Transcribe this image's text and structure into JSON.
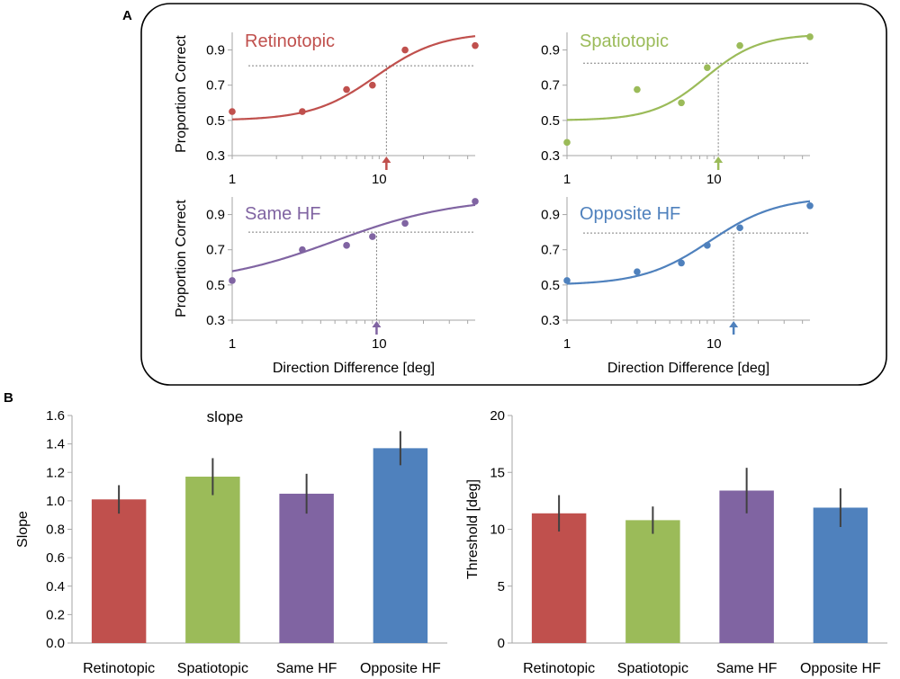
{
  "panel_labels": {
    "a": "A",
    "b": "B"
  },
  "colors": {
    "retinotopic": "#c0504d",
    "spatiotopic": "#9bbb59",
    "same_hf": "#8064a2",
    "opposite_hf": "#4f81bd",
    "axis": "#a6a6a6",
    "reference_line": "#808080",
    "text": "#000000"
  },
  "chart_data": [
    {
      "type": "scatter",
      "title": "Retinotopic",
      "xlabel": "",
      "ylabel": "Proportion  Correct",
      "x_scale": "log",
      "xlim": [
        1,
        45
      ],
      "ylim": [
        0.3,
        1.0
      ],
      "x_ticks": [
        1,
        10
      ],
      "x_tick_labels": [
        "1",
        "10"
      ],
      "y_ticks": [
        0.3,
        0.5,
        0.7,
        0.9
      ],
      "y_tick_labels": [
        "0.3",
        "0.5",
        "0.7",
        "0.9"
      ],
      "points": [
        {
          "x": 1,
          "y": 0.55
        },
        {
          "x": 3,
          "y": 0.55
        },
        {
          "x": 6,
          "y": 0.675
        },
        {
          "x": 9,
          "y": 0.7
        },
        {
          "x": 15,
          "y": 0.9
        },
        {
          "x": 45,
          "y": 0.925
        }
      ],
      "fit": {
        "low": 0.5,
        "high": 1.0,
        "x50": 9.5,
        "steepness": 2.0
      },
      "criterion": 0.81,
      "threshold": 11.2,
      "color_key": "retinotopic"
    },
    {
      "type": "scatter",
      "title": "Spatiotopic",
      "xlabel": "",
      "ylabel": "",
      "x_scale": "log",
      "xlim": [
        1,
        45
      ],
      "ylim": [
        0.3,
        1.0
      ],
      "x_ticks": [
        1,
        10
      ],
      "x_tick_labels": [
        "1",
        "10"
      ],
      "y_ticks": [
        0.3,
        0.5,
        0.7,
        0.9
      ],
      "y_tick_labels": [
        "0.3",
        "0.5",
        "0.7",
        "0.9"
      ],
      "points": [
        {
          "x": 1,
          "y": 0.375
        },
        {
          "x": 3,
          "y": 0.675
        },
        {
          "x": 6,
          "y": 0.6
        },
        {
          "x": 9,
          "y": 0.8
        },
        {
          "x": 15,
          "y": 0.925
        },
        {
          "x": 45,
          "y": 0.975
        }
      ],
      "fit": {
        "low": 0.5,
        "high": 0.99,
        "x50": 8.8,
        "steepness": 2.4
      },
      "criterion": 0.825,
      "threshold": 10.7,
      "color_key": "spatiotopic"
    },
    {
      "type": "scatter",
      "title": "Same HF",
      "xlabel": "Direction Difference [deg]",
      "ylabel": "Proportion  Correct",
      "x_scale": "log",
      "xlim": [
        1,
        45
      ],
      "ylim": [
        0.3,
        1.0
      ],
      "x_ticks": [
        1,
        10
      ],
      "x_tick_labels": [
        "1",
        "10"
      ],
      "y_ticks": [
        0.3,
        0.5,
        0.7,
        0.9
      ],
      "y_tick_labels": [
        "0.3",
        "0.5",
        "0.7",
        "0.9"
      ],
      "points": [
        {
          "x": 1,
          "y": 0.525
        },
        {
          "x": 3,
          "y": 0.7
        },
        {
          "x": 6,
          "y": 0.725
        },
        {
          "x": 9,
          "y": 0.775
        },
        {
          "x": 15,
          "y": 0.85
        },
        {
          "x": 45,
          "y": 0.975
        }
      ],
      "fit": {
        "low": 0.5,
        "high": 1.0,
        "x50": 5.0,
        "steepness": 1.05
      },
      "criterion": 0.8,
      "threshold": 9.6,
      "color_key": "same_hf"
    },
    {
      "type": "scatter",
      "title": "Opposite HF",
      "xlabel": "Direction Difference [deg]",
      "ylabel": "",
      "x_scale": "log",
      "xlim": [
        1,
        45
      ],
      "ylim": [
        0.3,
        1.0
      ],
      "x_ticks": [
        1,
        10
      ],
      "x_tick_labels": [
        "1",
        "10"
      ],
      "y_ticks": [
        0.3,
        0.5,
        0.7,
        0.9
      ],
      "y_tick_labels": [
        "0.3",
        "0.5",
        "0.7",
        "0.9"
      ],
      "points": [
        {
          "x": 1,
          "y": 0.525
        },
        {
          "x": 3,
          "y": 0.575
        },
        {
          "x": 6,
          "y": 0.625
        },
        {
          "x": 9,
          "y": 0.725
        },
        {
          "x": 15,
          "y": 0.825
        },
        {
          "x": 45,
          "y": 0.95
        }
      ],
      "fit": {
        "low": 0.5,
        "high": 1.0,
        "x50": 9.4,
        "steepness": 1.9
      },
      "criterion": 0.795,
      "threshold": 13.6,
      "color_key": "opposite_hf"
    },
    {
      "type": "bar",
      "title": "slope",
      "xlabel": "",
      "ylabel": "Slope",
      "categories": [
        "Retinotopic",
        "Spatiotopic",
        "Same HF",
        "Opposite HF"
      ],
      "values": [
        1.01,
        1.17,
        1.05,
        1.37
      ],
      "errors": [
        0.1,
        0.13,
        0.14,
        0.12
      ],
      "ylim": [
        0,
        1.6
      ],
      "y_ticks": [
        0,
        0.2,
        0.4,
        0.6,
        0.8,
        1.0,
        1.2,
        1.4,
        1.6
      ],
      "y_tick_labels": [
        "0.0",
        "0.2",
        "0.4",
        "0.6",
        "0.8",
        "1.0",
        "1.2",
        "1.4",
        "1.6"
      ],
      "color_keys": [
        "retinotopic",
        "spatiotopic",
        "same_hf",
        "opposite_hf"
      ]
    },
    {
      "type": "bar",
      "title": "",
      "xlabel": "",
      "ylabel": "Threshold [deg]",
      "categories": [
        "Retinotopic",
        "Spatiotopic",
        "Same HF",
        "Opposite HF"
      ],
      "values": [
        11.4,
        10.8,
        13.4,
        11.9
      ],
      "errors": [
        1.6,
        1.2,
        2.0,
        1.7
      ],
      "ylim": [
        0,
        20
      ],
      "y_ticks": [
        0,
        5,
        10,
        15,
        20
      ],
      "y_tick_labels": [
        "0",
        "5",
        "10",
        "15",
        "20"
      ],
      "color_keys": [
        "retinotopic",
        "spatiotopic",
        "same_hf",
        "opposite_hf"
      ]
    }
  ]
}
